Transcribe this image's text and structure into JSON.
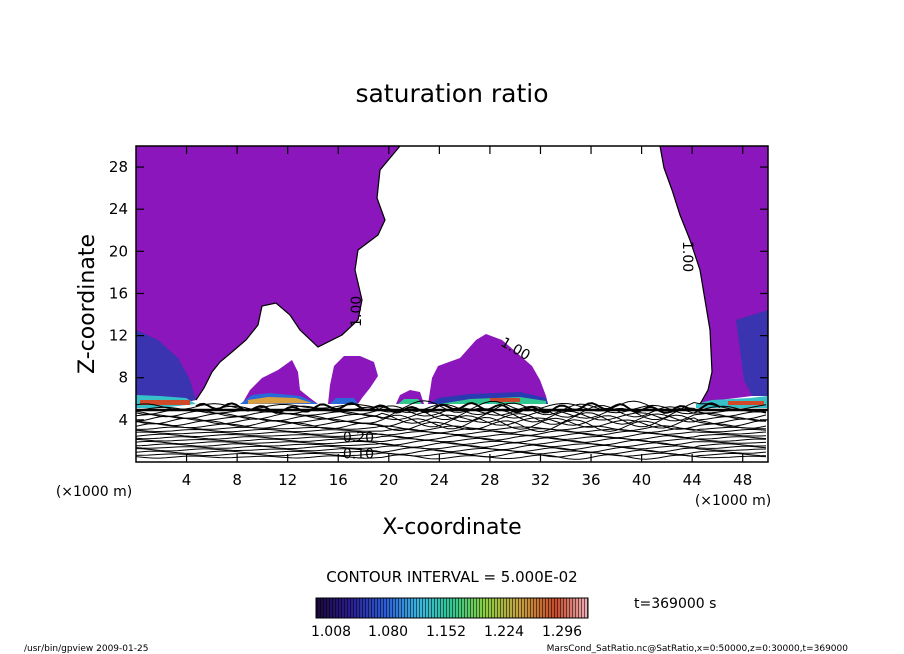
{
  "chart_data": {
    "type": "contour",
    "title": "saturation ratio",
    "xlabel": "X-coordinate",
    "ylabel": "Z-coordinate",
    "x_unit": "(×1000 m)",
    "y_unit": "(×1000 m)",
    "xlim": [
      0,
      50
    ],
    "ylim": [
      0,
      30
    ],
    "x_ticks": [
      4,
      8,
      12,
      16,
      20,
      24,
      28,
      32,
      36,
      40,
      44,
      48
    ],
    "y_ticks": [
      4,
      8,
      12,
      16,
      20,
      24,
      28
    ],
    "contour_labels": [
      {
        "text": "1.00",
        "x": 17.5,
        "y": 14.3,
        "angle": -90
      },
      {
        "text": "1.00",
        "x": 43.6,
        "y": 19.5,
        "angle": 90
      },
      {
        "text": "1.00",
        "x": 30.0,
        "y": 10.7,
        "angle": 30
      },
      {
        "text": "0.20",
        "x": 17.6,
        "y": 2.3,
        "angle": 0
      },
      {
        "text": "0.10",
        "x": 17.6,
        "y": 0.7,
        "angle": 0
      }
    ],
    "contour_interval_text": "CONTOUR INTERVAL = 5.000E-02",
    "colorbar": {
      "tick_labels": [
        "1.008",
        "1.080",
        "1.152",
        "1.224",
        "1.296"
      ],
      "range": [
        1.008,
        1.296
      ]
    },
    "time_label": "t=369000 s",
    "colors": {
      "supersaturated_fill": "#8b16bc",
      "frame": "#000000"
    }
  },
  "footer": {
    "left": "/usr/bin/gpview   2009-01-25",
    "right": "MarsCond_SatRatio.nc@SatRatio,x=0:50000,z=0:30000,t=369000"
  }
}
